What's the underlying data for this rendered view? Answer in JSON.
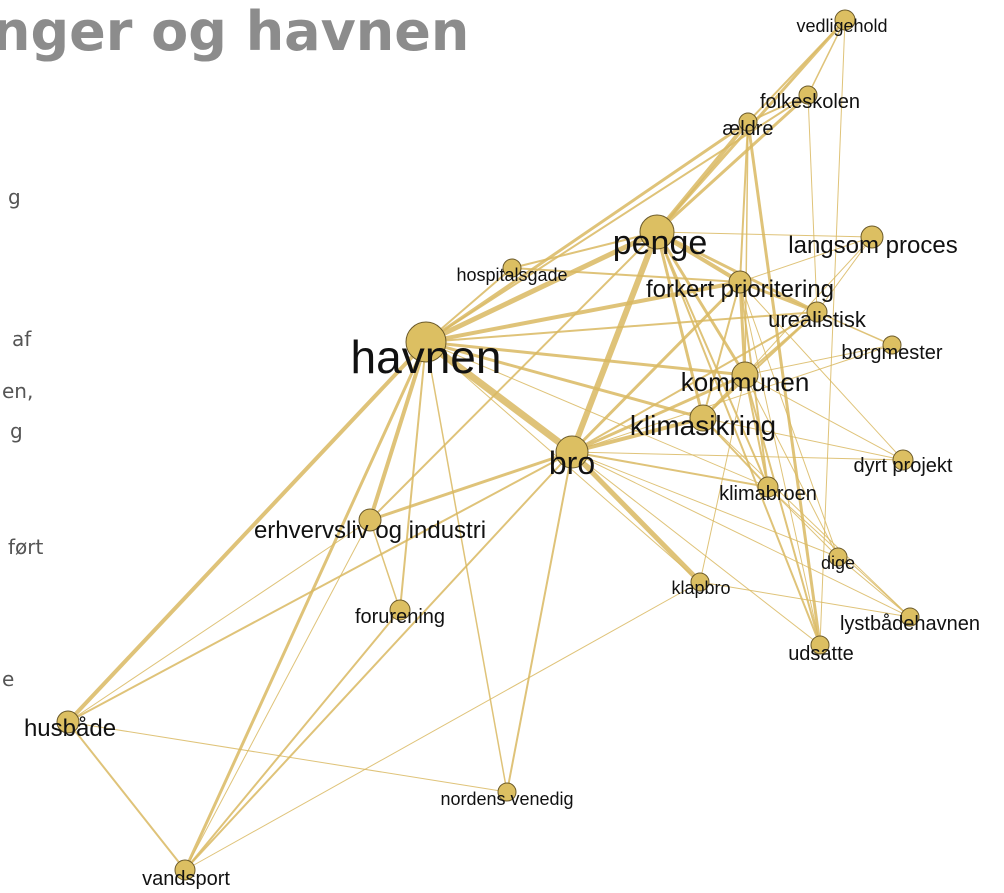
{
  "header": {
    "title": "nger og havnen"
  },
  "side_text": [
    "g",
    "af",
    "en,",
    "g",
    "ført",
    "e"
  ],
  "nodes": [
    {
      "label": "vedligehold"
    },
    {
      "label": "folkeskolen"
    },
    {
      "label": "ældre"
    },
    {
      "label": "penge"
    },
    {
      "label": "langsom proces"
    },
    {
      "label": "hospitalsgade"
    },
    {
      "label": "forkert prioritering"
    },
    {
      "label": "urealistisk"
    },
    {
      "label": "borgmester"
    },
    {
      "label": "havnen"
    },
    {
      "label": "kommunen"
    },
    {
      "label": "klimasikring"
    },
    {
      "label": "bro"
    },
    {
      "label": "dyrt projekt"
    },
    {
      "label": "klimabroen"
    },
    {
      "label": "erhvervsliv og industri"
    },
    {
      "label": "dige"
    },
    {
      "label": "klapbro"
    },
    {
      "label": "forurening"
    },
    {
      "label": "lystbådehavnen"
    },
    {
      "label": "udsatte"
    },
    {
      "label": "husbåde"
    },
    {
      "label": "nordens venedig"
    },
    {
      "label": "vandsport"
    }
  ]
}
